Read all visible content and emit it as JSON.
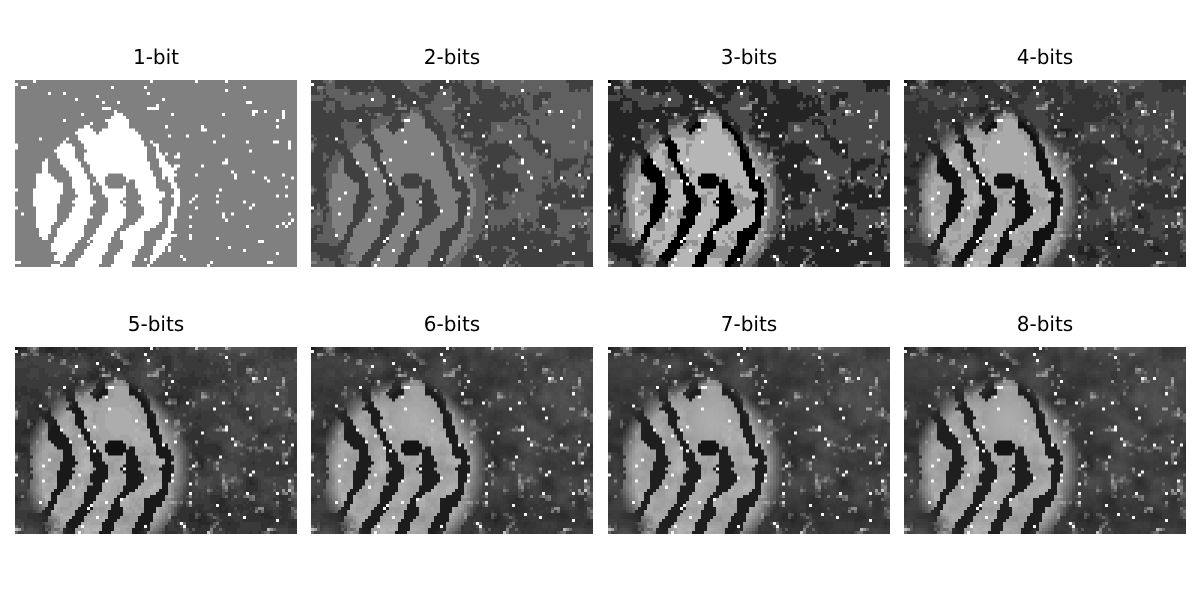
{
  "figure": {
    "panels": [
      {
        "title": "1-bit",
        "bits": 1
      },
      {
        "title": "2-bits",
        "bits": 2
      },
      {
        "title": "3-bits",
        "bits": 3
      },
      {
        "title": "4-bits",
        "bits": 4
      },
      {
        "title": "5-bits",
        "bits": 5
      },
      {
        "title": "6-bits",
        "bits": 6
      },
      {
        "title": "7-bits",
        "bits": 7
      },
      {
        "title": "8-bits",
        "bits": 8
      }
    ],
    "colors": {
      "background": "#ffffff",
      "title_text": "#000000"
    }
  }
}
